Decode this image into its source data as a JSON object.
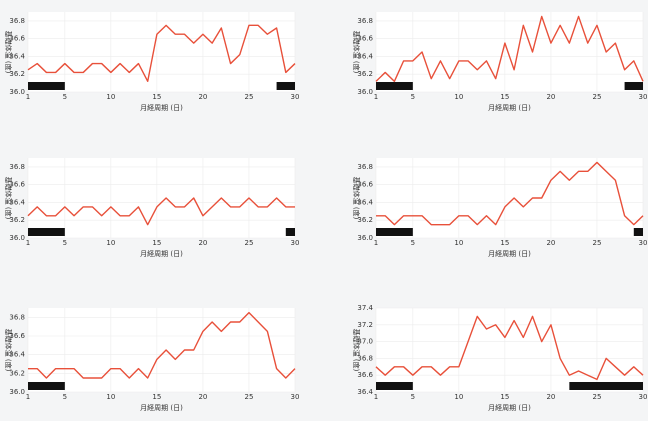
{
  "chart_data": [
    {
      "type": "line",
      "x_label": "月経周期 (日)",
      "y_label": "基礎体温 (度)",
      "x": [
        1,
        2,
        3,
        4,
        5,
        6,
        7,
        8,
        9,
        10,
        11,
        12,
        13,
        14,
        15,
        16,
        17,
        18,
        19,
        20,
        21,
        22,
        23,
        24,
        25,
        26,
        27,
        28,
        29,
        30
      ],
      "series": [
        {
          "color": "#e8503a",
          "values": [
            36.25,
            36.32,
            36.22,
            36.22,
            36.32,
            36.22,
            36.22,
            36.32,
            36.32,
            36.22,
            36.32,
            36.22,
            36.32,
            36.12,
            36.65,
            36.75,
            36.65,
            36.65,
            36.55,
            36.65,
            36.55,
            36.72,
            36.32,
            36.42,
            36.75,
            36.75,
            36.65,
            36.72,
            36.22,
            36.32
          ]
        }
      ],
      "period_days": [
        [
          1,
          5
        ],
        [
          28,
          30
        ]
      ],
      "period_color": "#111111",
      "xlim": [
        1,
        30
      ],
      "xticks": [
        1,
        5,
        10,
        15,
        20,
        25,
        30
      ],
      "ylim": [
        36.0,
        36.9
      ],
      "yticks": [
        {
          "value": 36,
          "label": "36.0"
        },
        36.2,
        36.4,
        36.6,
        36.8
      ],
      "grid": true
    },
    {
      "type": "line",
      "x_label": "月経周期 (日)",
      "y_label": "基礎体温 (度)",
      "x": [
        1,
        2,
        3,
        4,
        5,
        6,
        7,
        8,
        9,
        10,
        11,
        12,
        13,
        14,
        15,
        16,
        17,
        18,
        19,
        20,
        21,
        22,
        23,
        24,
        25,
        26,
        27,
        28,
        29,
        30
      ],
      "series": [
        {
          "color": "#e8503a",
          "values": [
            36.12,
            36.22,
            36.12,
            36.35,
            36.35,
            36.45,
            36.15,
            36.35,
            36.15,
            36.35,
            36.35,
            36.25,
            36.35,
            36.15,
            36.55,
            36.25,
            36.75,
            36.45,
            36.85,
            36.55,
            36.75,
            36.55,
            36.85,
            36.55,
            36.75,
            36.45,
            36.55,
            36.25,
            36.35,
            36.12
          ]
        }
      ],
      "period_days": [
        [
          1,
          5
        ],
        [
          28,
          30
        ]
      ],
      "period_color": "#111111",
      "xlim": [
        1,
        30
      ],
      "xticks": [
        1,
        5,
        10,
        15,
        20,
        25,
        30
      ],
      "ylim": [
        36.0,
        36.9
      ],
      "yticks": [
        {
          "value": 36,
          "label": "36.0"
        },
        36.2,
        36.4,
        36.6,
        36.8
      ],
      "grid": true
    },
    {
      "type": "line",
      "x_label": "月経周期 (日)",
      "y_label": "基礎体温 (度)",
      "x": [
        1,
        2,
        3,
        4,
        5,
        6,
        7,
        8,
        9,
        10,
        11,
        12,
        13,
        14,
        15,
        16,
        17,
        18,
        19,
        20,
        21,
        22,
        23,
        24,
        25,
        26,
        27,
        28,
        29,
        30
      ],
      "series": [
        {
          "color": "#e8503a",
          "values": [
            36.25,
            36.35,
            36.25,
            36.25,
            36.35,
            36.25,
            36.35,
            36.35,
            36.25,
            36.35,
            36.25,
            36.25,
            36.35,
            36.15,
            36.35,
            36.45,
            36.35,
            36.35,
            36.45,
            36.25,
            36.35,
            36.45,
            36.35,
            36.35,
            36.45,
            36.35,
            36.35,
            36.45,
            36.35,
            36.35
          ]
        }
      ],
      "period_days": [
        [
          1,
          5
        ],
        [
          29,
          30
        ]
      ],
      "period_color": "#111111",
      "xlim": [
        1,
        30
      ],
      "xticks": [
        1,
        5,
        10,
        15,
        20,
        25,
        30
      ],
      "ylim": [
        36.0,
        36.9
      ],
      "yticks": [
        {
          "value": 36,
          "label": "36.0"
        },
        36.2,
        36.4,
        36.6,
        36.8
      ],
      "grid": true
    },
    {
      "type": "line",
      "x_label": "月経周期 (日)",
      "y_label": "基礎体温 (度)",
      "x": [
        1,
        2,
        3,
        4,
        5,
        6,
        7,
        8,
        9,
        10,
        11,
        12,
        13,
        14,
        15,
        16,
        17,
        18,
        19,
        20,
        21,
        22,
        23,
        24,
        25,
        26,
        27,
        28,
        29,
        30
      ],
      "series": [
        {
          "color": "#e8503a",
          "values": [
            36.25,
            36.25,
            36.15,
            36.25,
            36.25,
            36.25,
            36.15,
            36.15,
            36.15,
            36.25,
            36.25,
            36.15,
            36.25,
            36.15,
            36.35,
            36.45,
            36.35,
            36.45,
            36.45,
            36.65,
            36.75,
            36.65,
            36.75,
            36.75,
            36.85,
            36.75,
            36.65,
            36.25,
            36.15,
            36.25
          ]
        }
      ],
      "period_days": [
        [
          1,
          5
        ],
        [
          29,
          30
        ]
      ],
      "period_color": "#111111",
      "xlim": [
        1,
        30
      ],
      "xticks": [
        1,
        5,
        10,
        15,
        20,
        25,
        30
      ],
      "ylim": [
        36.0,
        36.9
      ],
      "yticks": [
        {
          "value": 36,
          "label": "36.0"
        },
        36.2,
        36.4,
        36.6,
        36.8
      ],
      "grid": true
    },
    {
      "type": "line",
      "x_label": "月経周期 (日)",
      "y_label": "基礎体温 (度)",
      "x": [
        1,
        2,
        3,
        4,
        5,
        6,
        7,
        8,
        9,
        10,
        11,
        12,
        13,
        14,
        15,
        16,
        17,
        18,
        19,
        20,
        21,
        22,
        23,
        24,
        25,
        26,
        27,
        28,
        29,
        30
      ],
      "series": [
        {
          "color": "#e8503a",
          "values": [
            36.25,
            36.25,
            36.15,
            36.25,
            36.25,
            36.25,
            36.15,
            36.15,
            36.15,
            36.25,
            36.25,
            36.15,
            36.25,
            36.15,
            36.35,
            36.45,
            36.35,
            36.45,
            36.45,
            36.65,
            36.75,
            36.65,
            36.75,
            36.75,
            36.85,
            36.75,
            36.65,
            36.25,
            36.15,
            36.25
          ]
        }
      ],
      "period_days": [
        [
          1,
          5
        ]
      ],
      "period_color": "#111111",
      "xlim": [
        1,
        30
      ],
      "xticks": [
        1,
        5,
        10,
        15,
        20,
        25,
        30
      ],
      "ylim": [
        36.0,
        36.9
      ],
      "yticks": [
        {
          "value": 36,
          "label": "36.0"
        },
        36.2,
        36.4,
        36.6,
        36.8
      ],
      "grid": true
    },
    {
      "type": "line",
      "x_label": "月経周期 (日)",
      "y_label": "基礎体温 (度)",
      "x": [
        1,
        2,
        3,
        4,
        5,
        6,
        7,
        8,
        9,
        10,
        11,
        12,
        13,
        14,
        15,
        16,
        17,
        18,
        19,
        20,
        21,
        22,
        23,
        24,
        25,
        26,
        27,
        28,
        29,
        30
      ],
      "series": [
        {
          "color": "#e8503a",
          "values": [
            36.7,
            36.6,
            36.7,
            36.7,
            36.6,
            36.7,
            36.7,
            36.6,
            36.7,
            36.7,
            37.0,
            37.3,
            37.15,
            37.2,
            37.05,
            37.25,
            37.05,
            37.3,
            37.0,
            37.2,
            36.8,
            36.6,
            36.65,
            36.6,
            36.55,
            36.8,
            36.7,
            36.6,
            36.7,
            36.6
          ]
        }
      ],
      "period_days": [
        [
          1,
          5
        ],
        [
          22,
          30
        ]
      ],
      "period_color": "#111111",
      "xlim": [
        1,
        30
      ],
      "xticks": [
        1,
        5,
        10,
        15,
        20,
        25,
        30
      ],
      "ylim": [
        36.4,
        37.4
      ],
      "yticks": [
        36.4,
        36.6,
        36.8,
        {
          "value": 37,
          "label": "37.0"
        },
        37.2,
        37.4
      ],
      "grid": true
    }
  ]
}
